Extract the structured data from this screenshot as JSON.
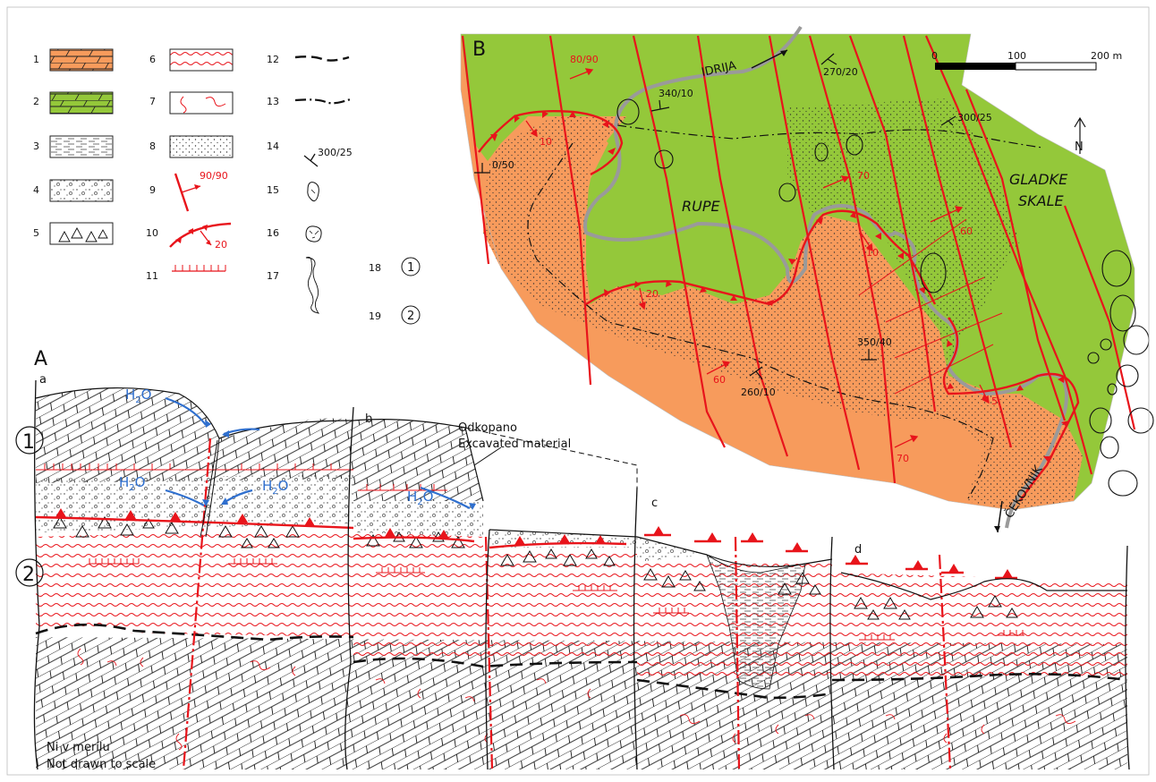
{
  "colors": {
    "limestone_orange": "#f79b5c",
    "dolomite_green": "#94c83a",
    "fault_red": "#e8141b",
    "water_blue": "#2f6fce",
    "stream_grey": "#9a9a9a",
    "sand_stipple": "#3a3a3a"
  },
  "legend": {
    "items": [
      {
        "num": "1",
        "symbol": "orange-limestone-swatch"
      },
      {
        "num": "2",
        "symbol": "green-dolomite-swatch"
      },
      {
        "num": "3",
        "symbol": "clay-dashes-swatch"
      },
      {
        "num": "4",
        "symbol": "gravel-swatch"
      },
      {
        "num": "5",
        "symbol": "breccia-triangles-swatch"
      },
      {
        "num": "6",
        "symbol": "red-wavy-lines-swatch"
      },
      {
        "num": "7",
        "symbol": "red-curves-swatch"
      },
      {
        "num": "8",
        "symbol": "sand-stipple-swatch"
      },
      {
        "num": "9",
        "symbol": "fault-with-dip-symbol",
        "text": "90/90"
      },
      {
        "num": "10",
        "symbol": "thrust-fault-symbol",
        "text": "20"
      },
      {
        "num": "11",
        "symbol": "fracture-comb-symbol"
      },
      {
        "num": "12",
        "symbol": "dashed-boundary-symbol"
      },
      {
        "num": "13",
        "symbol": "dash-dot-boundary-symbol"
      },
      {
        "num": "14",
        "symbol": "strike-dip-symbol",
        "text": "300/25"
      },
      {
        "num": "15",
        "symbol": "doline-symbol"
      },
      {
        "num": "16",
        "symbol": "collapse-doline-symbol"
      },
      {
        "num": "17",
        "symbol": "excavation-outline-symbol"
      },
      {
        "num": "18",
        "symbol": "circled-1-symbol",
        "text": "1"
      },
      {
        "num": "19",
        "symbol": "circled-2-symbol",
        "text": "2"
      }
    ]
  },
  "map": {
    "panel_letter": "B",
    "scale": {
      "t0": "0",
      "t100": "100",
      "t200": "200 m"
    },
    "north": "N",
    "places": {
      "idrija": "IDRIJA",
      "rupe": "RUPE",
      "gladke": "GLADKE",
      "skale": "SKALE",
      "cekovnik": "ČEKOVNIK"
    },
    "measurements": {
      "m1": "80/90",
      "m2": "340/10",
      "m3": "270/20",
      "m4": "300/25",
      "m5": "0/50",
      "m6": "350/40",
      "m7": "260/10"
    },
    "red_values": {
      "r1": "10",
      "r2": "70",
      "r3": "60",
      "r4": "10",
      "r5": "20",
      "r6": "60",
      "r7": "5",
      "r8": "70"
    }
  },
  "section": {
    "panel_letter": "A",
    "sub": {
      "a": "a",
      "b": "b",
      "c": "c",
      "d": "d"
    },
    "circled": {
      "one": "1",
      "two": "2"
    },
    "water": {
      "h": "H",
      "sub": "2",
      "o": "O"
    },
    "excavated_sl": "Odkopano",
    "excavated_en": "Excavated material",
    "scale_sl": "Ni v merilu",
    "scale_en": "Not drawn to scale"
  }
}
